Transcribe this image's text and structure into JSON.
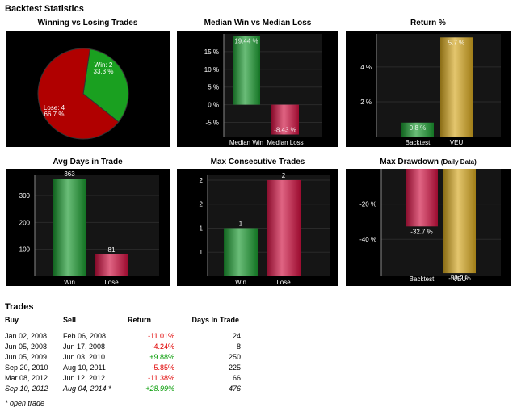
{
  "section_title": "Backtest Statistics",
  "colors": {
    "green": "#1a9a30",
    "red": "#d01040",
    "gold": "#d6a820",
    "pie_green": "#1aa020",
    "pie_red": "#b00000",
    "panel_bg": "#000000",
    "grid": "#2a2a2a",
    "pos_text": "#009900",
    "neg_text": "#e00000"
  },
  "chart_data": [
    {
      "id": "win-lose",
      "type": "pie",
      "title": "Winning vs Losing Trades",
      "slices": [
        {
          "label": "Win: 2",
          "pct_label": "33.3 %",
          "value": 2,
          "color": "green"
        },
        {
          "label": "Lose: 4",
          "pct_label": "66.7 %",
          "value": 4,
          "color": "red"
        }
      ]
    },
    {
      "id": "median",
      "type": "bar",
      "title": "Median Win vs Median Loss",
      "categories": [
        "Median Win",
        "Median Loss"
      ],
      "values": [
        19.44,
        -8.43
      ],
      "value_labels": [
        "19.44 %",
        "-8.43 %"
      ],
      "bar_colors": [
        "green",
        "red"
      ],
      "yticks": [
        15,
        10,
        5,
        0,
        -5
      ],
      "ytick_labels": [
        "15 %",
        "10 %",
        "5 %",
        "0 %",
        "-5 %"
      ],
      "ylim": [
        -9,
        20
      ]
    },
    {
      "id": "return",
      "type": "bar",
      "title": "Return %",
      "categories": [
        "Backtest",
        "VEU"
      ],
      "values": [
        0.8,
        5.7
      ],
      "value_labels": [
        "0.8 %",
        "5.7 %"
      ],
      "bar_colors": [
        "green",
        "gold"
      ],
      "yticks": [
        4,
        2
      ],
      "ytick_labels": [
        "4 %",
        "2 %"
      ],
      "ylim": [
        0,
        5.9
      ]
    },
    {
      "id": "days",
      "type": "bar",
      "title": "Avg Days in Trade",
      "categories": [
        "Win",
        "Lose"
      ],
      "values": [
        363,
        81
      ],
      "value_labels": [
        "363",
        "81"
      ],
      "bar_colors": [
        "green",
        "red"
      ],
      "yticks": [
        300,
        200,
        100
      ],
      "ytick_labels": [
        "300",
        "200",
        "100"
      ],
      "ylim": [
        0,
        375
      ]
    },
    {
      "id": "consec",
      "type": "bar",
      "title": "Max Consecutive Trades",
      "categories": [
        "Win",
        "Lose"
      ],
      "values": [
        1,
        2
      ],
      "value_labels": [
        "1",
        "2"
      ],
      "bar_colors": [
        "green",
        "red"
      ],
      "yticks": [
        2,
        1.5,
        1,
        0.5
      ],
      "ytick_labels": [
        "2",
        "2",
        "1",
        "1"
      ],
      "ylim": [
        0,
        2.1
      ]
    },
    {
      "id": "drawdown",
      "type": "bar",
      "title": "Max Drawdown",
      "title_note": "(Daily Data)",
      "categories": [
        "Backtest",
        "VEU"
      ],
      "values": [
        -32.7,
        -59.2
      ],
      "value_labels": [
        "-32.7 %",
        "-59.2 %"
      ],
      "bar_colors": [
        "red",
        "gold"
      ],
      "yticks": [
        -20,
        -40
      ],
      "ytick_labels": [
        "-20 %",
        "-40 %"
      ],
      "ylim": [
        -61,
        0
      ]
    }
  ],
  "trades": {
    "title": "Trades",
    "headers": {
      "buy": "Buy",
      "sell": "Sell",
      "return": "Return",
      "days": "Days In Trade"
    },
    "rows": [
      {
        "buy": "Jan 02, 2008",
        "sell": "Feb 06, 2008",
        "return": "-11.01%",
        "days": "24",
        "sign": "neg"
      },
      {
        "buy": "Jun 05, 2008",
        "sell": "Jun 17, 2008",
        "return": "-4.24%",
        "days": "8",
        "sign": "neg"
      },
      {
        "buy": "Jun 05, 2009",
        "sell": "Jun 03, 2010",
        "return": "+9.88%",
        "days": "250",
        "sign": "pos"
      },
      {
        "buy": "Sep 20, 2010",
        "sell": "Aug 10, 2011",
        "return": "-5.85%",
        "days": "225",
        "sign": "neg"
      },
      {
        "buy": "Mar 08, 2012",
        "sell": "Jun 12, 2012",
        "return": "-11.38%",
        "days": "66",
        "sign": "neg"
      },
      {
        "buy": "Sep 10, 2012",
        "sell": "Aug 04, 2014 *",
        "return": "+28.99%",
        "days": "476",
        "sign": "pos",
        "open": true
      }
    ],
    "footnote": "* open trade"
  }
}
